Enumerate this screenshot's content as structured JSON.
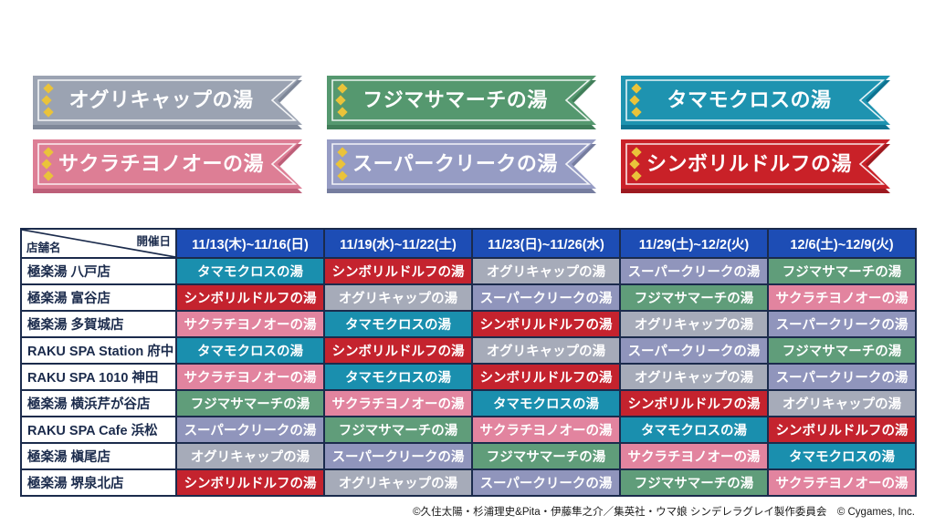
{
  "baths": {
    "oguri": {
      "label": "オグリキャップの湯",
      "color": "#a6abb9",
      "ribbon": "#9ba3b2",
      "shadow": "#7f8899"
    },
    "creek": {
      "label": "スーパークリークの湯",
      "color": "#9095bc",
      "ribbon": "#969cc4",
      "shadow": "#767d9f"
    },
    "march": {
      "label": "フジマサマーチの湯",
      "color": "#609d7a",
      "ribbon": "#55986f",
      "shadow": "#417e59"
    },
    "sakura": {
      "label": "サクラチヨノオーの湯",
      "color": "#e2849f",
      "ribbon": "#dd7e95",
      "shadow": "#bd5f79"
    },
    "tamamo": {
      "label": "タマモクロスの湯",
      "color": "#1a8fae",
      "ribbon": "#1e93b0",
      "shadow": "#0e7391"
    },
    "rudolf": {
      "label": "シンボリルドルフの湯",
      "color": "#c4232e",
      "ribbon": "#c92128",
      "shadow": "#9d1a20"
    }
  },
  "banners": {
    "order": [
      "oguri",
      "march",
      "tamamo",
      "sakura",
      "creek",
      "rudolf"
    ],
    "diamond_color": "#eac33a"
  },
  "table": {
    "corner": {
      "top_right": "開催日",
      "bottom_left": "店舗名"
    },
    "header_color": "#1d4db5",
    "border_color": "#1b2b4c",
    "text_color": "#1b2b4c",
    "date_columns": [
      "11/13(木)~11/16(日)",
      "11/19(水)~11/22(土)",
      "11/23(日)~11/26(水)",
      "11/29(土)~12/2(火)",
      "12/6(土)~12/9(火)"
    ],
    "rows": [
      {
        "store": "極楽湯 八戸店",
        "baths": [
          "tamamo",
          "rudolf",
          "oguri",
          "creek",
          "march"
        ]
      },
      {
        "store": "極楽湯 富谷店",
        "baths": [
          "rudolf",
          "oguri",
          "creek",
          "march",
          "sakura"
        ]
      },
      {
        "store": "極楽湯 多賀城店",
        "baths": [
          "sakura",
          "tamamo",
          "rudolf",
          "oguri",
          "creek"
        ]
      },
      {
        "store": "RAKU SPA Station 府中",
        "baths": [
          "tamamo",
          "rudolf",
          "oguri",
          "creek",
          "march"
        ]
      },
      {
        "store": "RAKU SPA 1010 神田",
        "baths": [
          "sakura",
          "tamamo",
          "rudolf",
          "oguri",
          "creek"
        ]
      },
      {
        "store": "極楽湯 横浜芹が谷店",
        "baths": [
          "march",
          "sakura",
          "tamamo",
          "rudolf",
          "oguri"
        ]
      },
      {
        "store": "RAKU SPA Cafe 浜松",
        "baths": [
          "creek",
          "march",
          "sakura",
          "tamamo",
          "rudolf"
        ]
      },
      {
        "store": "極楽湯 槇尾店",
        "baths": [
          "oguri",
          "creek",
          "march",
          "sakura",
          "tamamo"
        ]
      },
      {
        "store": "極楽湯 堺泉北店",
        "baths": [
          "rudolf",
          "oguri",
          "creek",
          "march",
          "sakura"
        ]
      }
    ]
  },
  "footer": {
    "copyright": "©久住太陽・杉浦理史&Pita・伊藤隼之介／集英社・ウマ娘 シンデレラグレイ製作委員会　© Cygames, Inc."
  }
}
